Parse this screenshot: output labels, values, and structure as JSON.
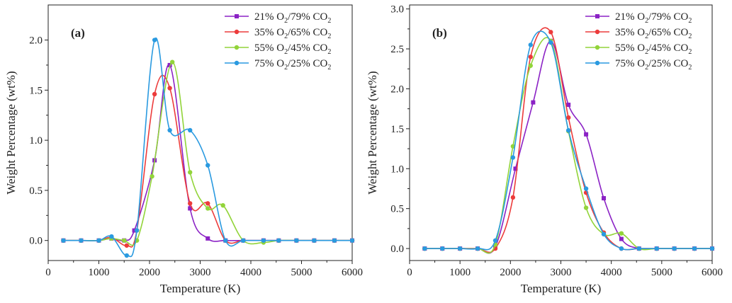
{
  "chart_data": [
    {
      "type": "line",
      "panel_label": "(a)",
      "xlabel": "Temperature  (K)",
      "ylabel": "Weight Percentage  (wt%)",
      "xlim": [
        0,
        6000
      ],
      "ylim": [
        -0.2,
        2.35
      ],
      "xticks": [
        0,
        1000,
        2000,
        3000,
        4000,
        5000,
        6000
      ],
      "yticks": [
        0.0,
        0.5,
        1.0,
        1.5,
        2.0
      ],
      "ytick_labels": [
        "0.0",
        "0.5",
        "1.0",
        "1.5",
        "2.0"
      ],
      "grid": false,
      "legend_position": "top-right",
      "series": [
        {
          "name": "21% O2/79% CO2",
          "label_parts": [
            "21% O",
            "2",
            "/79% CO",
            "2"
          ],
          "color": "#8b22c5",
          "marker": "square",
          "x": [
            300,
            650,
            1000,
            1250,
            1500,
            1700,
            2100,
            2400,
            2800,
            3150,
            3500,
            3850,
            4250,
            4550,
            4900,
            5250,
            5650,
            6000
          ],
          "y": [
            0,
            0,
            0,
            0.02,
            0.0,
            0.1,
            0.8,
            1.75,
            0.32,
            0.02,
            0.0,
            0.0,
            0,
            0,
            0,
            0,
            0,
            0
          ]
        },
        {
          "name": "35% O2/65% CO2",
          "label_parts": [
            "35% O",
            "2",
            "/65% CO",
            "2"
          ],
          "color": "#ec3b3b",
          "marker": "circle",
          "x": [
            300,
            650,
            1000,
            1250,
            1550,
            1750,
            2100,
            2400,
            2800,
            3150,
            3500,
            3850,
            4250,
            4550,
            4900,
            5250,
            5650,
            6000
          ],
          "y": [
            0,
            0,
            0,
            0.03,
            -0.05,
            0.1,
            1.46,
            1.52,
            0.37,
            0.37,
            0.0,
            0.0,
            0,
            0,
            0,
            0,
            0,
            0
          ]
        },
        {
          "name": "55% O2/45% CO2",
          "label_parts": [
            "55% O",
            "2",
            "/45% CO",
            "2"
          ],
          "color": "#92d43a",
          "marker": "circle",
          "x": [
            300,
            650,
            1000,
            1250,
            1500,
            1750,
            2050,
            2450,
            2800,
            3150,
            3450,
            3850,
            4250,
            4550,
            4900,
            5250,
            5650,
            6000
          ],
          "y": [
            0,
            0,
            0,
            0.02,
            0.0,
            0.0,
            0.64,
            1.78,
            0.68,
            0.32,
            0.35,
            0.0,
            -0.02,
            0,
            0,
            0,
            0,
            0
          ]
        },
        {
          "name": "75% O2/25% CO2",
          "label_parts": [
            "75% O",
            "2",
            "/25% CO",
            "2"
          ],
          "color": "#2a9ae0",
          "marker": "circle",
          "x": [
            300,
            650,
            1000,
            1250,
            1550,
            1750,
            2100,
            2400,
            2800,
            3150,
            3500,
            3850,
            4250,
            4550,
            4900,
            5250,
            5650,
            6000
          ],
          "y": [
            0,
            0,
            0,
            0.04,
            -0.15,
            0.1,
            2.0,
            1.1,
            1.1,
            0.75,
            0.0,
            0.0,
            0,
            0,
            0,
            0,
            0,
            0
          ]
        }
      ]
    },
    {
      "type": "line",
      "panel_label": "(b)",
      "xlabel": "Temperature  (K)",
      "ylabel": "Weight Percentage  (wt%)",
      "xlim": [
        0,
        6000
      ],
      "ylim": [
        -0.15,
        3.05
      ],
      "xticks": [
        0,
        1000,
        2000,
        3000,
        4000,
        5000,
        6000
      ],
      "yticks": [
        0.0,
        0.5,
        1.0,
        1.5,
        2.0,
        2.5,
        3.0
      ],
      "ytick_labels": [
        "0.0",
        "0.5",
        "1.0",
        "1.5",
        "2.0",
        "2.5",
        "3.0"
      ],
      "grid": false,
      "legend_position": "top-right",
      "series": [
        {
          "name": "21% O2/79% CO2",
          "label_parts": [
            "21% O",
            "2",
            "/79% CO",
            "2"
          ],
          "color": "#8b22c5",
          "marker": "square",
          "x": [
            300,
            650,
            1000,
            1350,
            1700,
            2100,
            2450,
            2800,
            3150,
            3500,
            3850,
            4200,
            4550,
            4900,
            5250,
            5650,
            6000
          ],
          "y": [
            0,
            0,
            0,
            0,
            0.02,
            1.0,
            1.83,
            2.6,
            1.8,
            1.43,
            0.63,
            0.12,
            0.0,
            0,
            0,
            0,
            0
          ]
        },
        {
          "name": "35% O2/65% CO2",
          "label_parts": [
            "35% O",
            "2",
            "/65% CO",
            "2"
          ],
          "color": "#ec3b3b",
          "marker": "circle",
          "x": [
            300,
            650,
            1000,
            1350,
            1700,
            2050,
            2400,
            2800,
            3150,
            3500,
            3850,
            4200,
            4550,
            4900,
            5250,
            5650,
            6000
          ],
          "y": [
            0,
            0,
            0,
            0,
            0.0,
            0.64,
            2.4,
            2.71,
            1.64,
            0.7,
            0.2,
            0.0,
            0.0,
            0,
            0,
            0,
            0
          ]
        },
        {
          "name": "55% O2/45% CO2",
          "label_parts": [
            "55% O",
            "2",
            "/45% CO",
            "2"
          ],
          "color": "#92d43a",
          "marker": "circle",
          "x": [
            300,
            650,
            1000,
            1350,
            1700,
            2050,
            2400,
            2800,
            3150,
            3500,
            3850,
            4200,
            4550,
            4900,
            5250,
            5650,
            6000
          ],
          "y": [
            0,
            0,
            0,
            0,
            0.05,
            1.28,
            2.29,
            2.6,
            1.47,
            0.51,
            0.18,
            0.19,
            0.0,
            0,
            0,
            0,
            0
          ]
        },
        {
          "name": "75% O2/25% CO2",
          "label_parts": [
            "75% O",
            "2",
            "/25% CO",
            "2"
          ],
          "color": "#2a9ae0",
          "marker": "circle",
          "x": [
            300,
            650,
            1000,
            1350,
            1700,
            2050,
            2400,
            2800,
            3150,
            3500,
            3850,
            4200,
            4550,
            4900,
            5250,
            5650,
            6000
          ],
          "y": [
            0,
            0,
            0,
            0,
            0.1,
            1.14,
            2.55,
            2.58,
            1.48,
            0.75,
            0.18,
            0.0,
            0.0,
            0,
            0,
            0,
            0
          ]
        }
      ]
    }
  ]
}
